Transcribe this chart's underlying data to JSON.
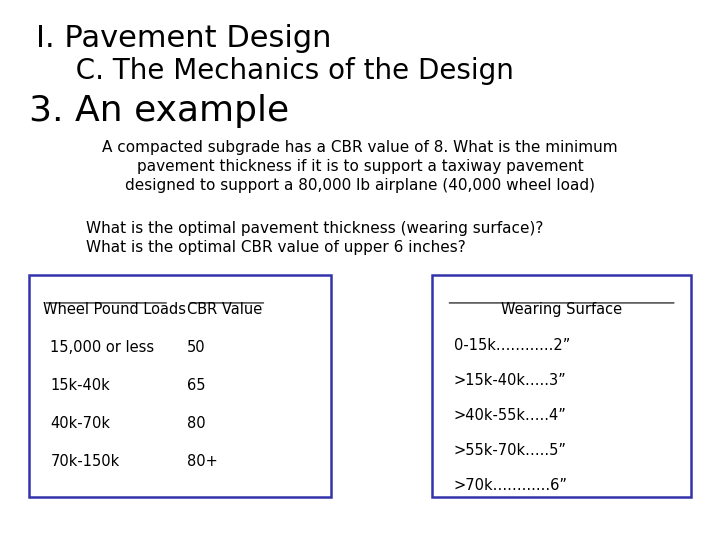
{
  "background_color": "#ffffff",
  "title1": "I. Pavement Design",
  "title2": "  C. The Mechanics of the Design",
  "title3": "3. An example",
  "para1_line1": "A compacted subgrade has a CBR value of 8. What is the minimum",
  "para1_line2": "pavement thickness if it is to support a taxiway pavement",
  "para1_line3": "designed to support a 80,000 lb airplane (40,000 wheel load)",
  "para2_line1": "What is the optimal pavement thickness (wearing surface)?",
  "para2_line2": "What is the optimal CBR value of upper 6 inches?",
  "table1_header_col1": "Wheel Pound Loads",
  "table1_header_col2": "CBR Value",
  "table1_rows": [
    [
      "15,000 or less",
      "50"
    ],
    [
      "15k-40k",
      "65"
    ],
    [
      "40k-70k",
      "80"
    ],
    [
      "70k-150k",
      "80+"
    ]
  ],
  "table2_header": "Wearing Surface",
  "table2_rows": [
    "0-15k……......2”",
    ">15k-40k…..3”",
    ">40k-55k…..4”",
    ">55k-70k…..5”",
    ">70k……......6”"
  ],
  "box_color": "#3333aa",
  "title1_fontsize": 22,
  "title2_fontsize": 20,
  "title3_fontsize": 26,
  "body_fontsize": 11,
  "table_fontsize": 10.5
}
